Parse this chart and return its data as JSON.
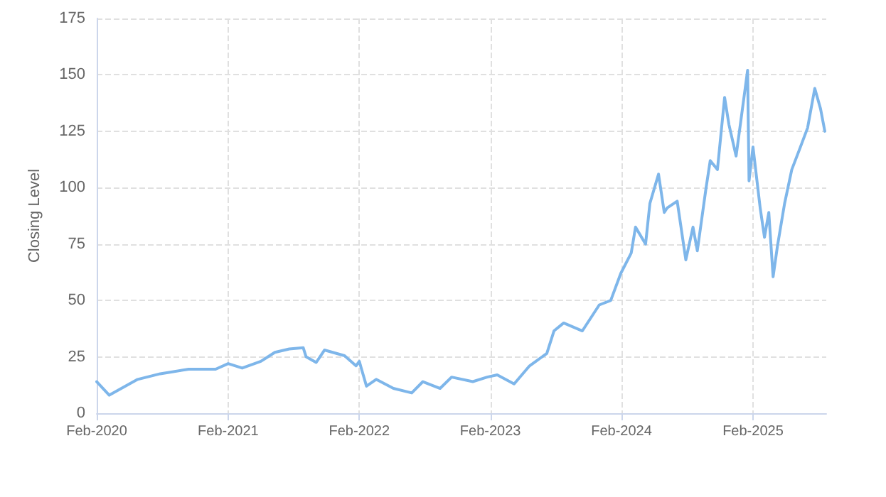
{
  "chart_data": {
    "type": "line",
    "ylabel": "Closing Level",
    "grid": true,
    "marker": "none",
    "line_style": "solid",
    "xlim": [
      "2020-02-01",
      "2025-08-24"
    ],
    "xticks": [
      {
        "value": "2020-02-01",
        "label": "Feb-2020"
      },
      {
        "value": "2021-02-01",
        "label": "Feb-2021"
      },
      {
        "value": "2022-02-01",
        "label": "Feb-2022"
      },
      {
        "value": "2023-02-01",
        "label": "Feb-2023"
      },
      {
        "value": "2024-02-01",
        "label": "Feb-2024"
      },
      {
        "value": "2025-02-01",
        "label": "Feb-2025"
      }
    ],
    "ylim": [
      0,
      175
    ],
    "yticks": [
      0,
      25,
      50,
      75,
      100,
      125,
      150,
      175
    ],
    "x": [
      "2020-02-01",
      "2020-03-07",
      "2020-05-25",
      "2020-07-27",
      "2020-10-14",
      "2020-12-28",
      "2021-02-01",
      "2021-03-12",
      "2021-05-03",
      "2021-06-11",
      "2021-07-21",
      "2021-08-29",
      "2021-09-06",
      "2021-10-04",
      "2021-10-27",
      "2021-12-22",
      "2022-01-23",
      "2022-02-01",
      "2022-02-21",
      "2022-03-20",
      "2022-05-07",
      "2022-06-27",
      "2022-07-28",
      "2022-09-14",
      "2022-10-16",
      "2022-12-14",
      "2023-01-23",
      "2023-02-20",
      "2023-04-08",
      "2023-05-21",
      "2023-07-08",
      "2023-07-28",
      "2023-08-24",
      "2023-10-15",
      "2023-12-01",
      "2024-01-02",
      "2024-01-30",
      "2024-02-28",
      "2024-03-11",
      "2024-04-08",
      "2024-04-20",
      "2024-05-14",
      "2024-05-30",
      "2024-06-07",
      "2024-07-05",
      "2024-07-29",
      "2024-08-18",
      "2024-08-30",
      "2024-09-23",
      "2024-10-05",
      "2024-10-25",
      "2024-11-14",
      "2024-11-26",
      "2024-12-16",
      "2025-01-01",
      "2025-01-17",
      "2025-01-21",
      "2025-02-01",
      "2025-02-21",
      "2025-03-05",
      "2025-03-17",
      "2025-03-29",
      "2025-04-10",
      "2025-04-30",
      "2025-05-20",
      "2025-06-13",
      "2025-07-03",
      "2025-07-23",
      "2025-08-08",
      "2025-08-20"
    ],
    "series": [
      {
        "color": "#7eb6ea",
        "values": [
          14,
          8,
          15,
          17.5,
          19.5,
          19.5,
          22,
          20,
          23,
          27,
          28.5,
          29,
          25,
          22.5,
          28,
          25.5,
          21,
          23,
          12,
          15,
          11,
          9,
          14,
          11,
          16,
          14,
          16,
          17,
          13,
          21,
          26.5,
          36.5,
          40,
          36.5,
          48,
          50,
          62,
          71,
          82.5,
          75,
          93,
          106,
          89,
          91,
          94,
          68,
          82.5,
          72,
          99.5,
          112,
          108,
          140,
          128,
          114,
          133,
          152,
          103,
          118,
          91,
          78,
          89,
          60.5,
          74,
          93,
          108,
          118,
          126.5,
          144,
          135,
          125
        ]
      }
    ]
  }
}
